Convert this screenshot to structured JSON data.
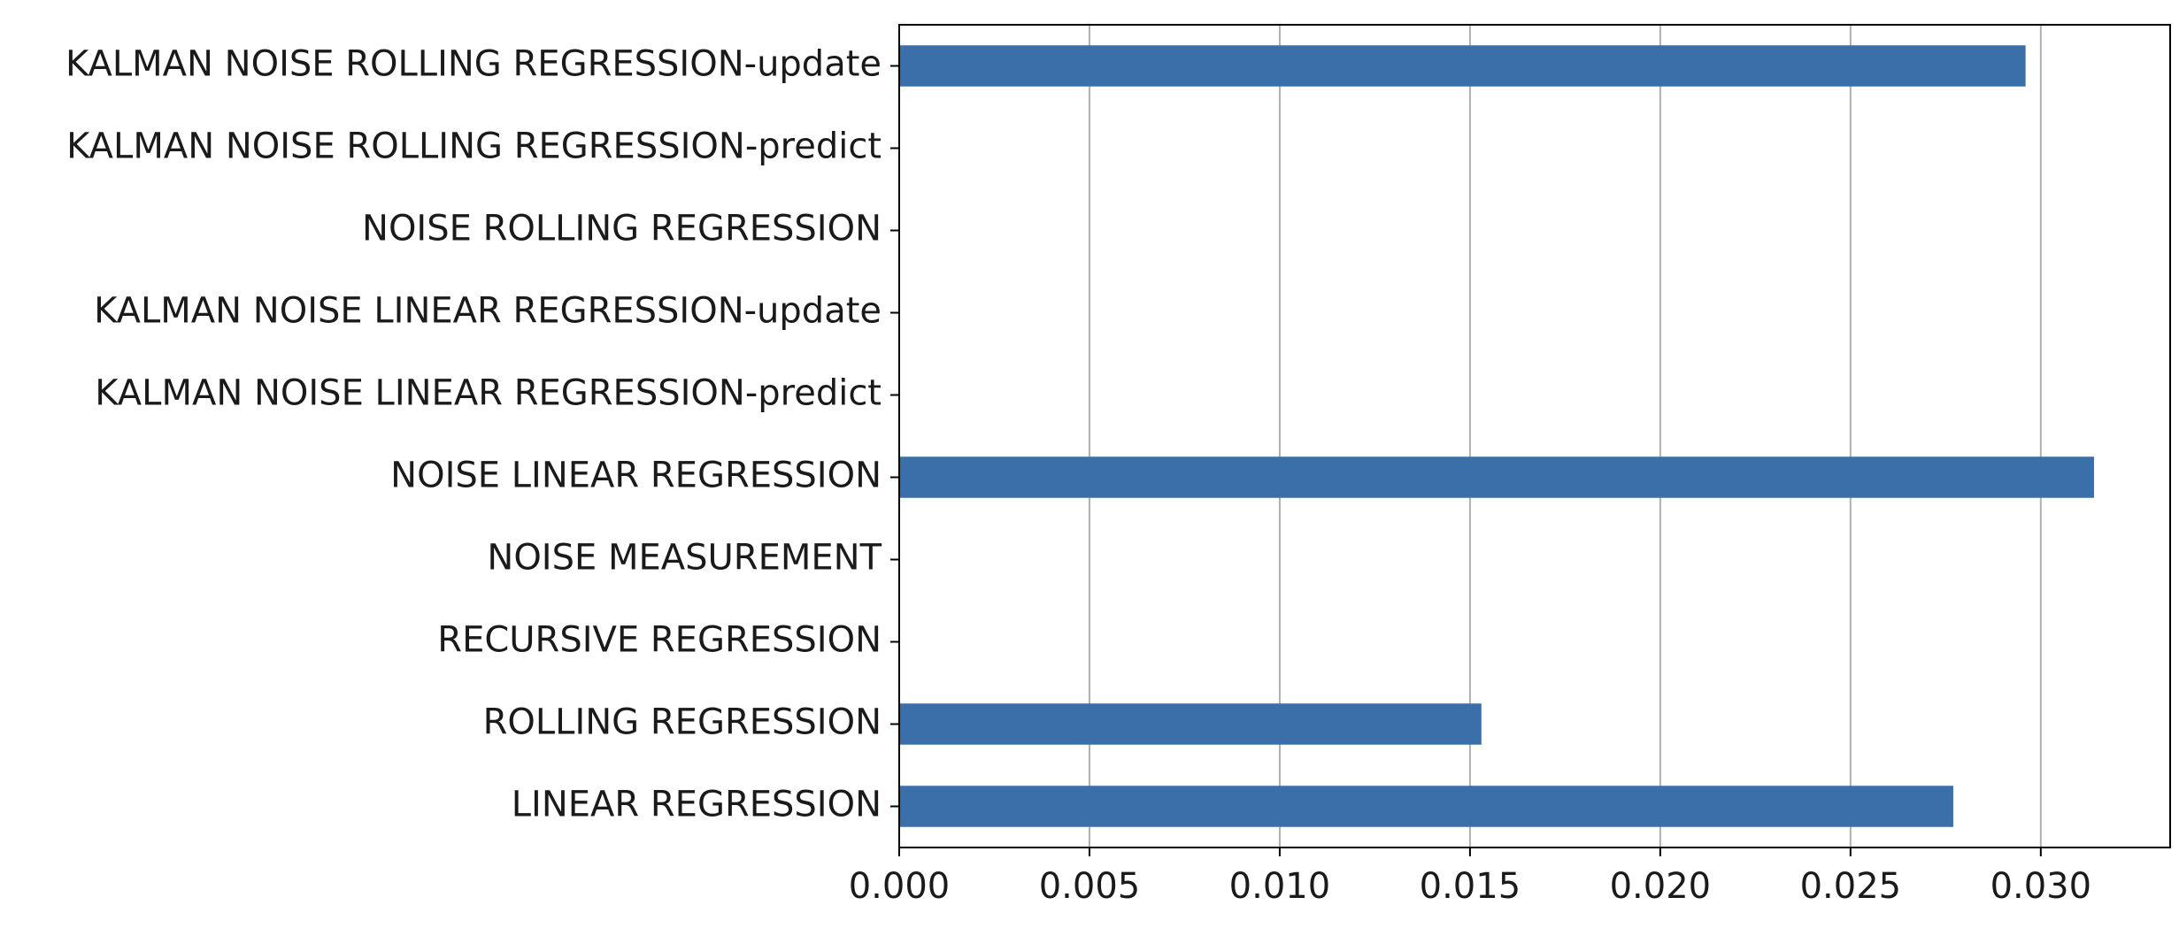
{
  "chart_data": {
    "type": "barh",
    "categories": [
      "LINEAR REGRESSION",
      "ROLLING REGRESSION",
      "RECURSIVE REGRESSION",
      "NOISE MEASUREMENT",
      "NOISE LINEAR REGRESSION",
      "KALMAN NOISE LINEAR REGRESSION-predict",
      "KALMAN NOISE LINEAR REGRESSION-update",
      "NOISE ROLLING REGRESSION",
      "KALMAN NOISE ROLLING REGRESSION-predict",
      "KALMAN NOISE ROLLING REGRESSION-update"
    ],
    "values": [
      0.0277,
      0.0153,
      0,
      0,
      0.0314,
      0,
      0,
      0,
      0,
      0.0296
    ],
    "color": "#3a6faa",
    "xlim": [
      0,
      0.0334
    ],
    "xticks": [
      {
        "value": 0,
        "label": "0.000"
      },
      {
        "value": 0.005,
        "label": "0.005"
      },
      {
        "value": 0.01,
        "label": "0.010"
      },
      {
        "value": 0.015,
        "label": "0.015"
      },
      {
        "value": 0.02,
        "label": "0.020"
      },
      {
        "value": 0.025,
        "label": "0.025"
      },
      {
        "value": 0.03,
        "label": "0.030"
      }
    ],
    "grid": true
  }
}
